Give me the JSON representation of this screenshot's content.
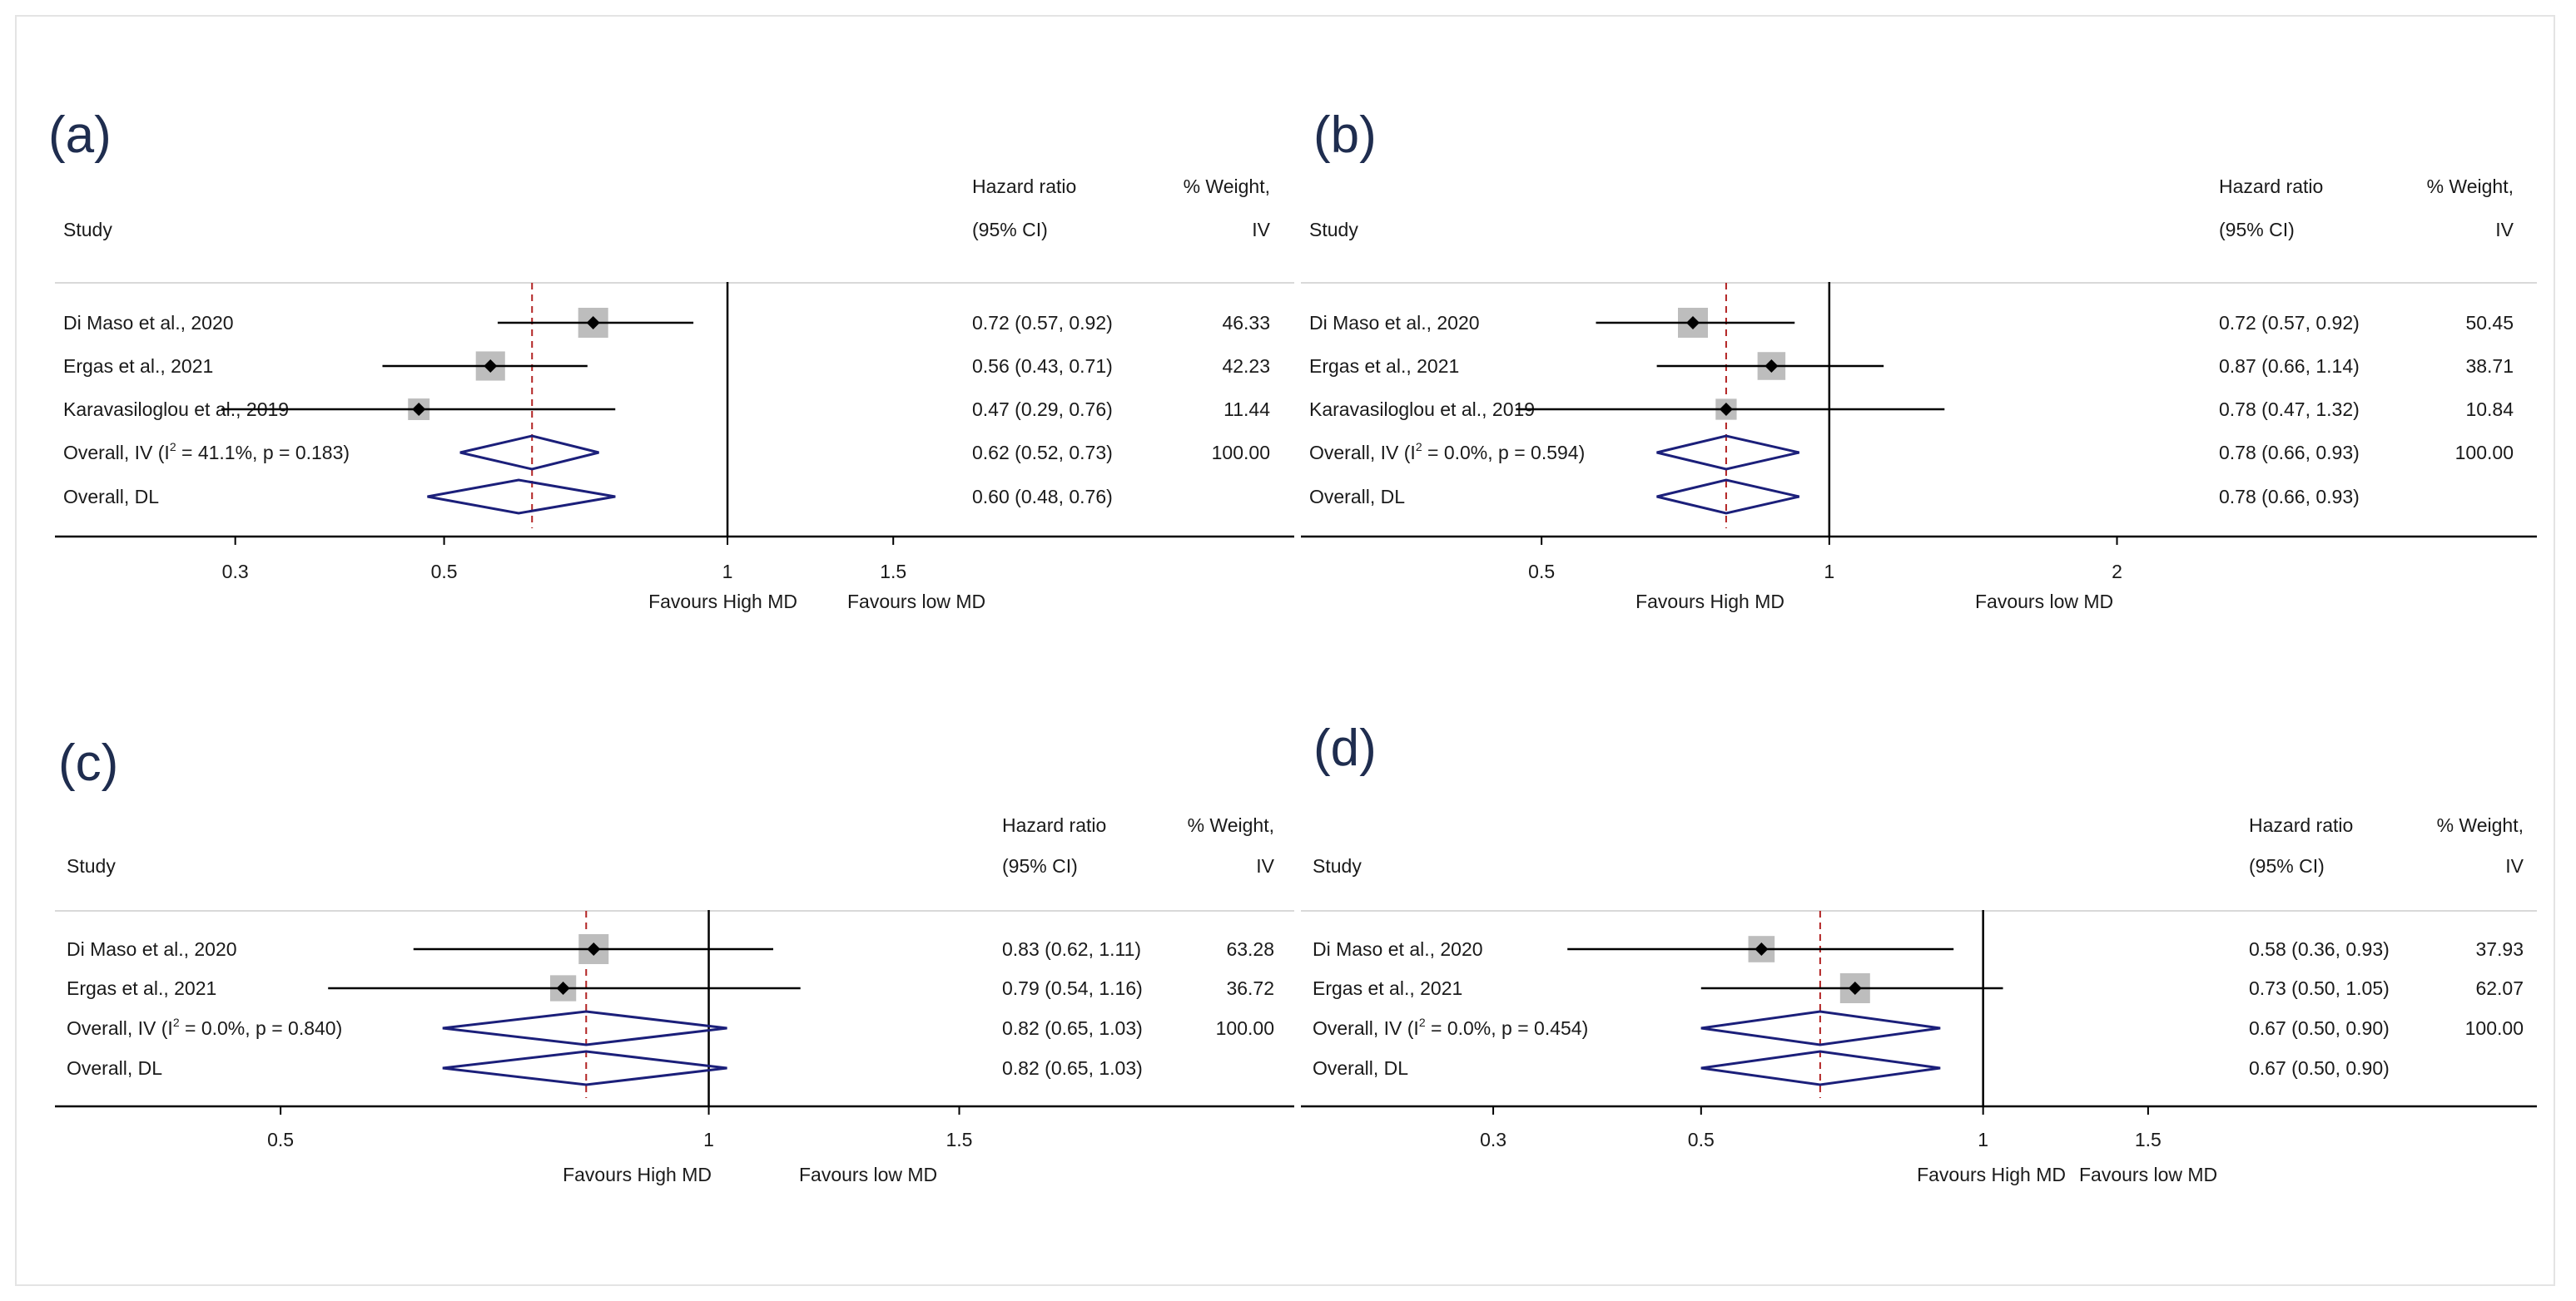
{
  "chart_data": [
    {
      "type": "forest",
      "panel_label": "(a)",
      "headers": {
        "study": "Study",
        "hr_line1": "Hazard ratio",
        "hr_line2": "(95% CI)",
        "wt_line1": "% Weight,",
        "wt_line2": "IV"
      },
      "studies": [
        {
          "name": "Di Maso et al., 2020",
          "hr": 0.72,
          "lo": 0.57,
          "hi": 0.92,
          "ci_text": "0.72 (0.57, 0.92)",
          "weight": "46.33",
          "w": 46.33
        },
        {
          "name": "Ergas et al., 2021",
          "hr": 0.56,
          "lo": 0.43,
          "hi": 0.71,
          "ci_text": "0.56 (0.43, 0.71)",
          "weight": "42.23",
          "w": 42.23
        },
        {
          "name": "Karavasiloglou et al., 2019",
          "hr": 0.47,
          "lo": 0.29,
          "hi": 0.76,
          "ci_text": "0.47 (0.29, 0.76)",
          "weight": "11.44",
          "w": 11.44
        }
      ],
      "overall": [
        {
          "pre": "Overall, IV (I",
          "sup": "2",
          "post": " = 41.1%, p = 0.183)",
          "hr": 0.62,
          "lo": 0.52,
          "hi": 0.73,
          "ci_text": "0.62 (0.52, 0.73)",
          "weight": "100.00"
        },
        {
          "pre": "Overall, DL",
          "sup": "",
          "post": "",
          "hr": 0.6,
          "lo": 0.48,
          "hi": 0.76,
          "ci_text": "0.60 (0.48, 0.76)",
          "weight": ""
        }
      ],
      "ticks": [
        {
          "v": 0.3,
          "label": "0.3"
        },
        {
          "v": 0.5,
          "label": "0.5"
        },
        {
          "v": 1,
          "label": "1"
        },
        {
          "v": 1.5,
          "label": "1.5"
        }
      ],
      "xlim": [
        0.193,
        4.0
      ],
      "scale": "log",
      "favours_left": "Favours High MD",
      "favours_right": "Favours low MD"
    },
    {
      "type": "forest",
      "panel_label": "(b)",
      "headers": {
        "study": "Study",
        "hr_line1": "Hazard ratio",
        "hr_line2": "(95% CI)",
        "wt_line1": "% Weight,",
        "wt_line2": "IV"
      },
      "studies": [
        {
          "name": "Di Maso et al., 2020",
          "hr": 0.72,
          "lo": 0.57,
          "hi": 0.92,
          "ci_text": "0.72 (0.57, 0.92)",
          "weight": "50.45",
          "w": 50.45
        },
        {
          "name": "Ergas et al., 2021",
          "hr": 0.87,
          "lo": 0.66,
          "hi": 1.14,
          "ci_text": "0.87 (0.66, 1.14)",
          "weight": "38.71",
          "w": 38.71
        },
        {
          "name": "Karavasiloglou et al., 2019",
          "hr": 0.78,
          "lo": 0.47,
          "hi": 1.32,
          "ci_text": "0.78 (0.47, 1.32)",
          "weight": "10.84",
          "w": 10.84
        }
      ],
      "overall": [
        {
          "pre": "Overall, IV (I",
          "sup": "2",
          "post": " = 0.0%, p = 0.594)",
          "hr": 0.78,
          "lo": 0.66,
          "hi": 0.93,
          "ci_text": "0.78 (0.66, 0.93)",
          "weight": "100.00"
        },
        {
          "pre": "Overall, DL",
          "sup": "",
          "post": "",
          "hr": 0.78,
          "lo": 0.66,
          "hi": 0.93,
          "ci_text": "0.78 (0.66, 0.93)",
          "weight": ""
        }
      ],
      "ticks": [
        {
          "v": 0.5,
          "label": "0.5"
        },
        {
          "v": 1,
          "label": "1"
        },
        {
          "v": 2,
          "label": "2"
        }
      ],
      "xlim": [
        0.28,
        5.5
      ],
      "scale": "log",
      "favours_left": "Favours High MD",
      "favours_right": "Favours low MD"
    },
    {
      "type": "forest",
      "panel_label": "(c)",
      "headers": {
        "study": "Study",
        "hr_line1": "Hazard ratio",
        "hr_line2": "(95% CI)",
        "wt_line1": "% Weight,",
        "wt_line2": "IV"
      },
      "studies": [
        {
          "name": "Di Maso et al., 2020",
          "hr": 0.83,
          "lo": 0.62,
          "hi": 1.11,
          "ci_text": "0.83 (0.62, 1.11)",
          "weight": "63.28",
          "w": 63.28
        },
        {
          "name": "Ergas et al., 2021",
          "hr": 0.79,
          "lo": 0.54,
          "hi": 1.16,
          "ci_text": "0.79 (0.54, 1.16)",
          "weight": "36.72",
          "w": 36.72
        }
      ],
      "overall": [
        {
          "pre": "Overall, IV (I",
          "sup": "2",
          "post": " = 0.0%, p = 0.840)",
          "hr": 0.82,
          "lo": 0.65,
          "hi": 1.03,
          "ci_text": "0.82 (0.65, 1.03)",
          "weight": "100.00"
        },
        {
          "pre": "Overall, DL",
          "sup": "",
          "post": "",
          "hr": 0.82,
          "lo": 0.65,
          "hi": 1.03,
          "ci_text": "0.82 (0.65, 1.03)",
          "weight": ""
        }
      ],
      "ticks": [
        {
          "v": 0.5,
          "label": "0.5"
        },
        {
          "v": 1,
          "label": "1"
        },
        {
          "v": 1.5,
          "label": "1.5"
        }
      ],
      "xlim": [
        0.347,
        2.58
      ],
      "scale": "log",
      "favours_left": "Favours High MD",
      "favours_right": "Favours low MD"
    },
    {
      "type": "forest",
      "panel_label": "(d)",
      "headers": {
        "study": "Study",
        "hr_line1": "Hazard ratio",
        "hr_line2": "(95% CI)",
        "wt_line1": "% Weight,",
        "wt_line2": "IV"
      },
      "studies": [
        {
          "name": "Di Maso et al., 2020",
          "hr": 0.58,
          "lo": 0.36,
          "hi": 0.93,
          "ci_text": "0.58 (0.36, 0.93)",
          "weight": "37.93",
          "w": 37.93
        },
        {
          "name": "Ergas et al., 2021",
          "hr": 0.73,
          "lo": 0.5,
          "hi": 1.05,
          "ci_text": "0.73 (0.50, 1.05)",
          "weight": "62.07",
          "w": 62.07
        }
      ],
      "overall": [
        {
          "pre": "Overall, IV (I",
          "sup": "2",
          "post": " = 0.0%, p = 0.454)",
          "hr": 0.67,
          "lo": 0.5,
          "hi": 0.9,
          "ci_text": "0.67 (0.50, 0.90)",
          "weight": "100.00"
        },
        {
          "pre": "Overall, DL",
          "sup": "",
          "post": "",
          "hr": 0.67,
          "lo": 0.5,
          "hi": 0.9,
          "ci_text": "0.67 (0.50, 0.90)",
          "weight": ""
        }
      ],
      "ticks": [
        {
          "v": 0.3,
          "label": "0.3"
        },
        {
          "v": 0.5,
          "label": "0.5"
        },
        {
          "v": 1,
          "label": "1"
        },
        {
          "v": 1.5,
          "label": "1.5"
        }
      ],
      "xlim": [
        0.187,
        3.9
      ],
      "scale": "log",
      "favours_left": "Favours High MD",
      "favours_right": "Favours low MD"
    }
  ],
  "colors": {
    "diamond": "#1b1f7a",
    "dashed": "#b22222",
    "box": "#bdbdbd",
    "text": "#1a1a1a",
    "label": "#1f2d4f",
    "line": "#000000",
    "separator": "#d9d9d9"
  }
}
